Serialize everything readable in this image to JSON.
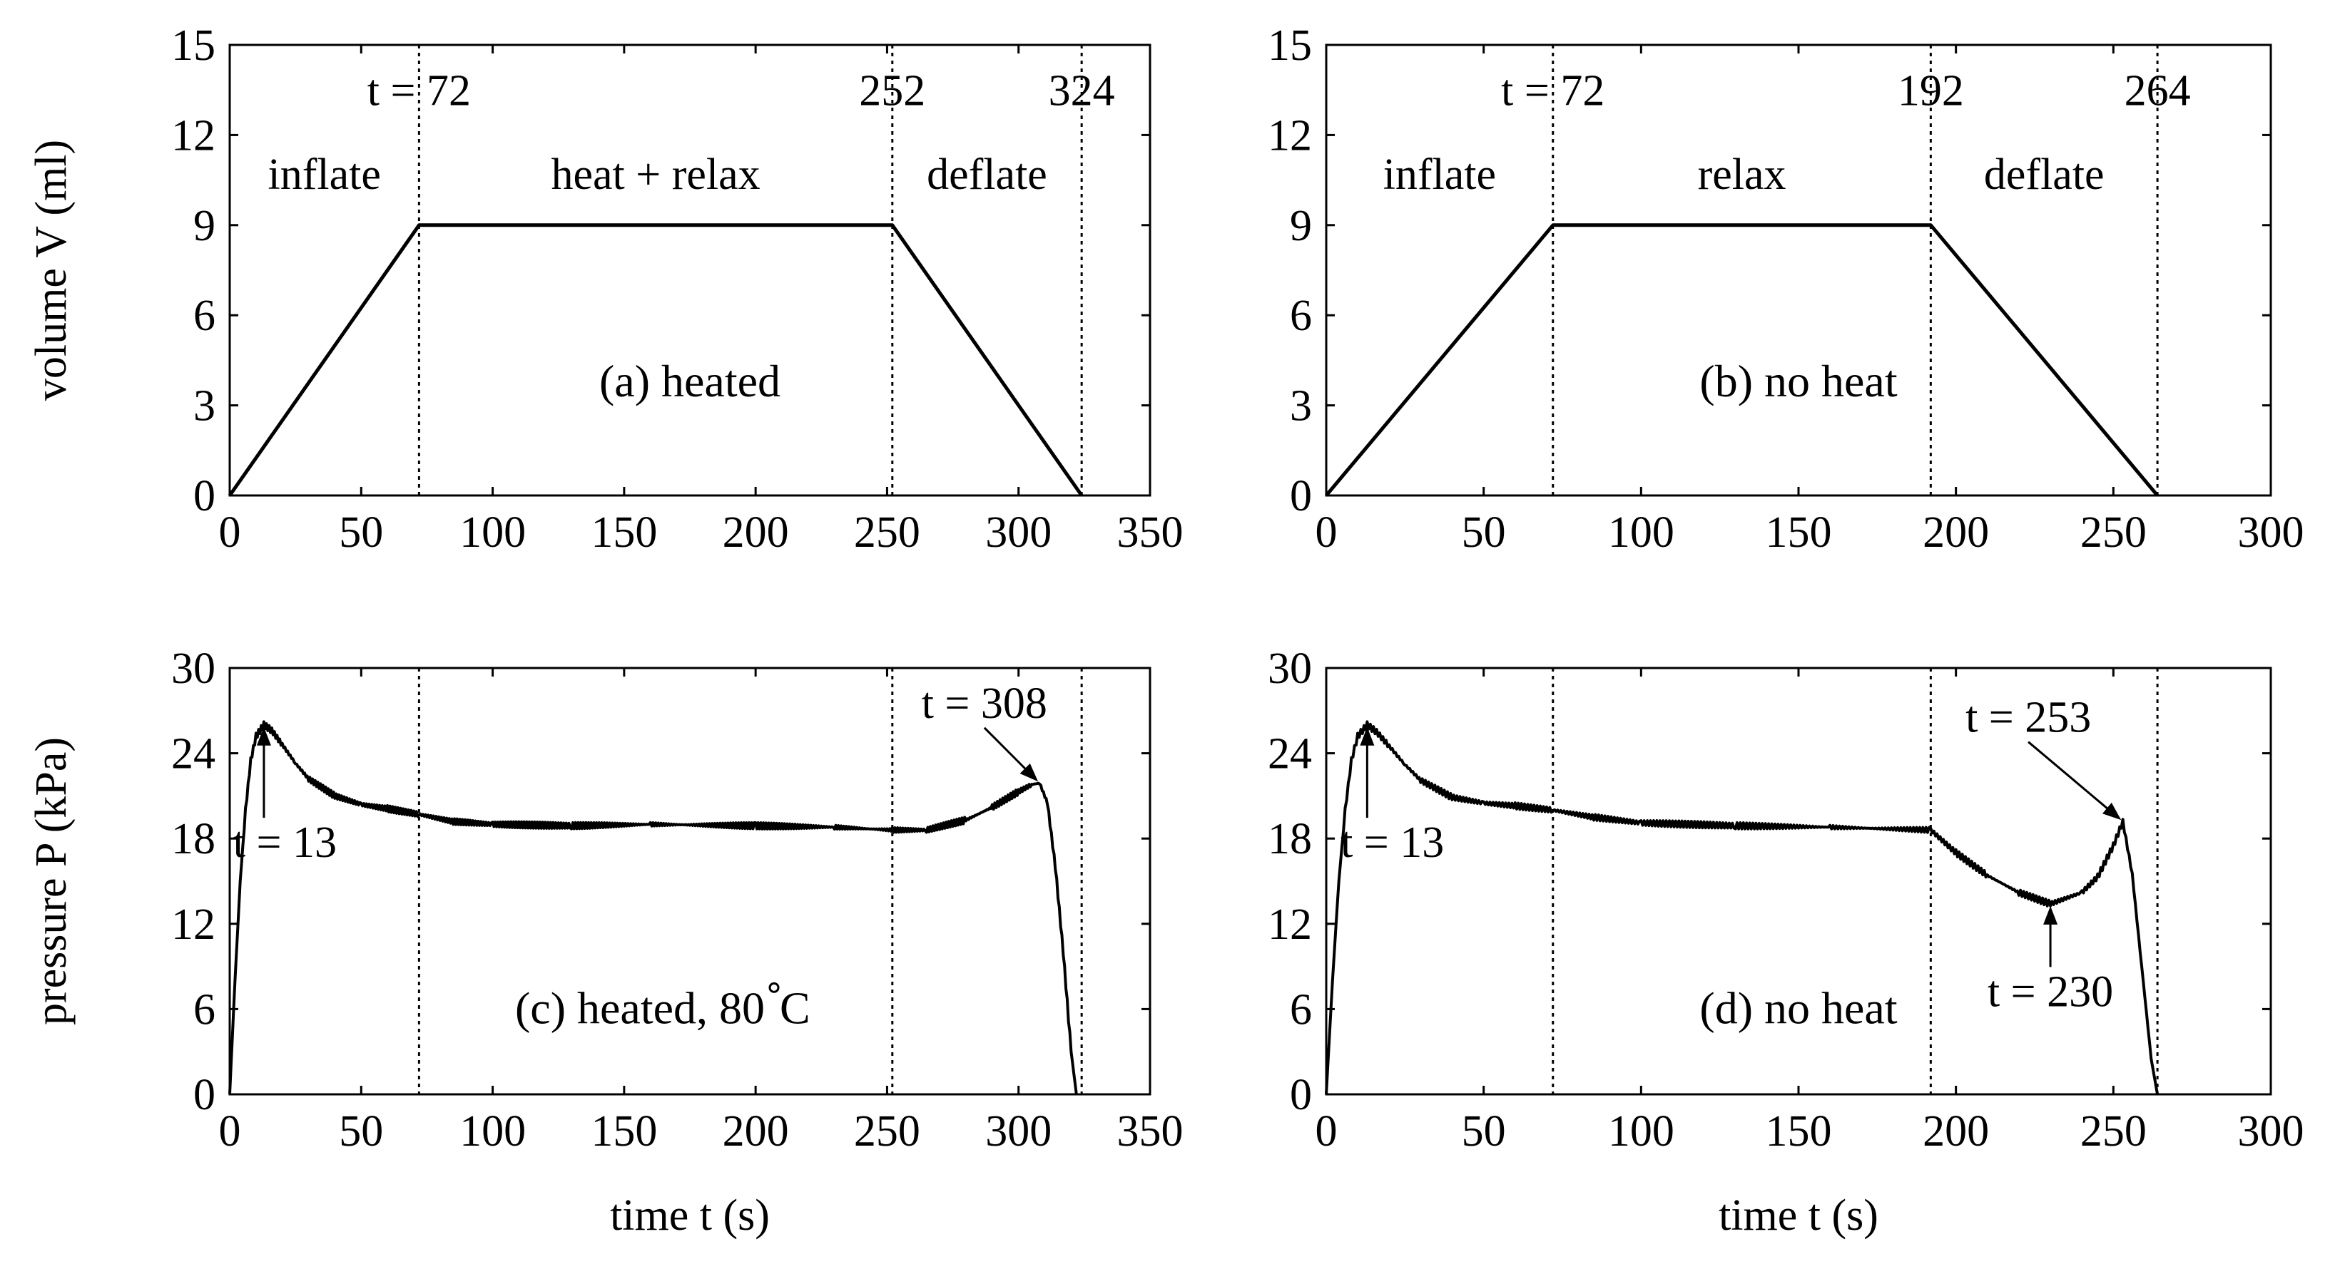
{
  "chart_data": [
    {
      "id": "a",
      "type": "line",
      "title": "(a) heated",
      "xlabel": "",
      "ylabel": "volume V (ml)",
      "xlim": [
        0,
        350
      ],
      "ylim": [
        0,
        15
      ],
      "xticks": [
        0,
        50,
        100,
        150,
        200,
        250,
        300,
        350
      ],
      "yticks": [
        0,
        3,
        6,
        9,
        12,
        15
      ],
      "series": [
        {
          "name": "volume",
          "x": [
            0,
            72,
            252,
            324
          ],
          "y": [
            0,
            9,
            9,
            0
          ]
        }
      ],
      "dividers": [
        72,
        252,
        324
      ],
      "phase_labels": [
        {
          "text": "inflate",
          "x": 36,
          "y": 10.2
        },
        {
          "text": "heat + relax",
          "x": 162,
          "y": 10.2
        },
        {
          "text": "deflate",
          "x": 288,
          "y": 10.2
        }
      ],
      "time_labels": [
        {
          "text": "t = 72",
          "x": 72,
          "y": 13.0
        },
        {
          "text": "252",
          "x": 252,
          "y": 13.0
        },
        {
          "text": "324",
          "x": 324,
          "y": 13.0
        }
      ]
    },
    {
      "id": "b",
      "type": "line",
      "title": "(b) no heat",
      "xlabel": "",
      "ylabel": "",
      "xlim": [
        0,
        300
      ],
      "ylim": [
        0,
        15
      ],
      "xticks": [
        0,
        50,
        100,
        150,
        200,
        250,
        300
      ],
      "yticks": [
        0,
        3,
        6,
        9,
        12,
        15
      ],
      "series": [
        {
          "name": "volume",
          "x": [
            0,
            72,
            192,
            264
          ],
          "y": [
            0,
            9,
            9,
            0
          ]
        }
      ],
      "dividers": [
        72,
        192,
        264
      ],
      "phase_labels": [
        {
          "text": "inflate",
          "x": 36,
          "y": 10.2
        },
        {
          "text": "relax",
          "x": 132,
          "y": 10.2
        },
        {
          "text": "deflate",
          "x": 228,
          "y": 10.2
        }
      ],
      "time_labels": [
        {
          "text": "t = 72",
          "x": 72,
          "y": 13.0
        },
        {
          "text": "192",
          "x": 192,
          "y": 13.0
        },
        {
          "text": "264",
          "x": 264,
          "y": 13.0
        }
      ]
    },
    {
      "id": "c",
      "type": "line",
      "title": "(c) heated, 80",
      "title_suffix": "C",
      "xlabel": "time t (s)",
      "ylabel": "pressure P (kPa)",
      "xlim": [
        0,
        350
      ],
      "ylim": [
        0,
        30
      ],
      "xticks": [
        0,
        50,
        100,
        150,
        200,
        250,
        300,
        350
      ],
      "yticks": [
        0,
        6,
        12,
        18,
        24,
        30
      ],
      "series": [
        {
          "name": "pressure",
          "x": [
            0,
            2,
            4,
            6,
            8,
            10,
            13,
            16,
            20,
            25,
            30,
            40,
            50,
            60,
            72,
            85,
            100,
            130,
            160,
            200,
            230,
            252,
            265,
            280,
            290,
            300,
            305,
            308,
            311,
            314,
            317,
            320,
            322
          ],
          "y": [
            0,
            8,
            15,
            20,
            23.5,
            25.2,
            26.0,
            25.6,
            24.6,
            23.3,
            22.2,
            21.0,
            20.4,
            20.1,
            19.7,
            19.2,
            19.0,
            18.9,
            19.0,
            18.9,
            18.8,
            18.6,
            18.6,
            19.3,
            20.2,
            21.3,
            21.8,
            21.9,
            20.5,
            16.0,
            10.0,
            3.0,
            0
          ]
        }
      ],
      "dividers": [
        72,
        252,
        324
      ],
      "annotations": [
        {
          "text": "t = 13",
          "point": [
            13,
            26.0
          ],
          "label": [
            21,
            16.7
          ]
        },
        {
          "text": "t = 308",
          "point": [
            308,
            21.9
          ],
          "label": [
            287,
            26.5
          ]
        }
      ]
    },
    {
      "id": "d",
      "type": "line",
      "title": "(d) no heat",
      "xlabel": "time t (s)",
      "ylabel": "",
      "xlim": [
        0,
        300
      ],
      "ylim": [
        0,
        30
      ],
      "xticks": [
        0,
        50,
        100,
        150,
        200,
        250,
        300
      ],
      "yticks": [
        0,
        6,
        12,
        18,
        24,
        30
      ],
      "series": [
        {
          "name": "pressure",
          "x": [
            0,
            2,
            4,
            6,
            8,
            10,
            13,
            16,
            20,
            25,
            30,
            40,
            50,
            60,
            72,
            85,
            100,
            130,
            160,
            192,
            200,
            210,
            220,
            230,
            240,
            245,
            250,
            253,
            256,
            259,
            262,
            264
          ],
          "y": [
            0,
            8,
            15,
            20,
            23.5,
            25.2,
            26.0,
            25.5,
            24.5,
            23.2,
            22.1,
            20.9,
            20.5,
            20.3,
            20.0,
            19.5,
            19.1,
            18.9,
            18.8,
            18.6,
            17.0,
            15.4,
            14.2,
            13.4,
            14.2,
            15.3,
            17.5,
            19.2,
            15.5,
            9.0,
            2.5,
            0
          ]
        }
      ],
      "dividers": [
        72,
        192,
        264
      ],
      "annotations": [
        {
          "text": "t = 13",
          "point": [
            13,
            26.0
          ],
          "label": [
            21,
            16.7
          ]
        },
        {
          "text": "t = 253",
          "point": [
            253,
            19.2
          ],
          "label": [
            223,
            25.5
          ]
        },
        {
          "text": "t = 230",
          "point": [
            230,
            13.4
          ],
          "label": [
            230,
            6.2
          ]
        }
      ]
    }
  ]
}
